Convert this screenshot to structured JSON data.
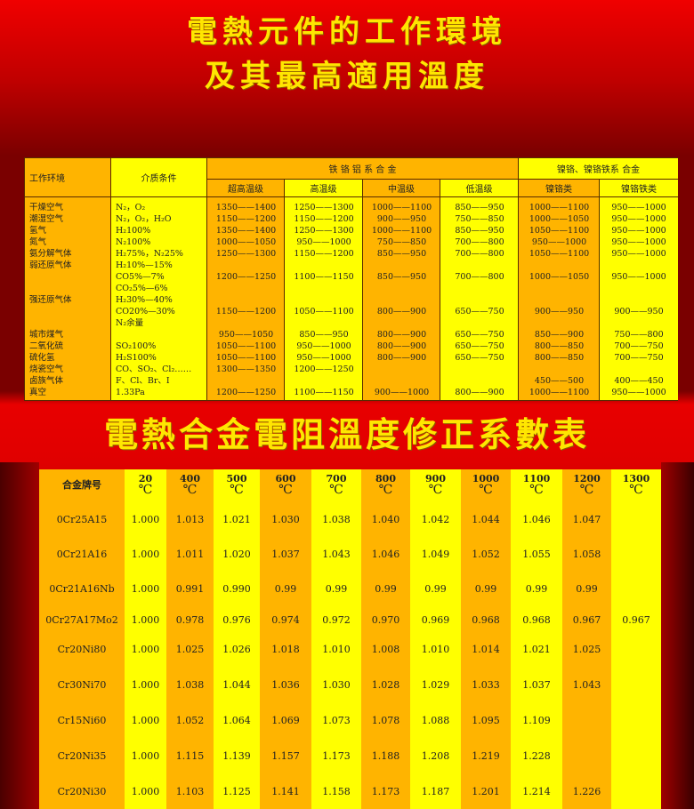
{
  "titles": {
    "line1": "電熱元件的工作環境",
    "line2": "及其最高適用溫度",
    "line3": "電熱合金電阻溫度修正系數表"
  },
  "env_table": {
    "header_env": "工作环境",
    "header_medium": "介质条件",
    "group_fecral": "铁 铬 铝 系 合 金",
    "group_nicr": "镍铬、镍铬铁系 合金",
    "subheaders": [
      "超高温级",
      "高温级",
      "中温级",
      "低温级",
      "镍铬类",
      "镍铬铁类"
    ],
    "lines": [
      [
        "干燥空气",
        "N₂，O₂",
        "1350——1400",
        "1250——1300",
        "1000——1100",
        "850——950",
        "1000——1100",
        "950——1000"
      ],
      [
        "潮湿空气",
        "N₂，O₂，H₂O",
        "1150——1200",
        "1150——1200",
        "900——950",
        "750——850",
        "1000——1050",
        "950——1000"
      ],
      [
        "氢气",
        "H₂100%",
        "1350——1400",
        "1250——1300",
        "1000——1100",
        "850——950",
        "1050——1100",
        "950——1000"
      ],
      [
        "氮气",
        "N₂100%",
        "1000——1050",
        "950——1000",
        "750——850",
        "700——800",
        "950——1000",
        "950——1000"
      ],
      [
        "氨分解气体",
        "H₂75%，N₂25%",
        "1250——1300",
        "1150——1200",
        "850——950",
        "700——800",
        "1050——1100",
        "950——1000"
      ],
      [
        "弱还原气体",
        "H₂10%—15%",
        "",
        "",
        "",
        "",
        "",
        ""
      ],
      [
        "",
        "CO5%—7%",
        "1200——1250",
        "1100——1150",
        "850——950",
        "700——800",
        "1000——1050",
        "950——1000"
      ],
      [
        "",
        "CO₂5%—6%",
        "",
        "",
        "",
        "",
        "",
        ""
      ],
      [
        "强还原气体",
        "H₂30%—40%",
        "",
        "",
        "",
        "",
        "",
        ""
      ],
      [
        "",
        "CO20%—30%",
        "1150——1200",
        "1050——1100",
        "800——900",
        "650——750",
        "900——950",
        "900——950"
      ],
      [
        "",
        "N₂余量",
        "",
        "",
        "",
        "",
        "",
        ""
      ],
      [
        "城市煤气",
        "",
        "950——1050",
        "850——950",
        "800——900",
        "650——750",
        "850——900",
        "750——800"
      ],
      [
        "二氧化硫",
        "SO₂100%",
        "1050——1100",
        "950——1000",
        "800——900",
        "650——750",
        "800——850",
        "700——750"
      ],
      [
        "硫化氢",
        "H₂S100%",
        "1050——1100",
        "950——1000",
        "800——900",
        "650——750",
        "800——850",
        "700——750"
      ],
      [
        "烧瓷空气",
        "CO、SO₂、Cl₂……",
        "1300——1350",
        "1200——1250",
        "",
        "",
        "",
        ""
      ],
      [
        "卤族气体",
        "F、Cl、Br、I",
        "",
        "",
        "",
        "",
        "450——500",
        "400——450"
      ],
      [
        "真空",
        "1.33Pa",
        "1200——1250",
        "1100——1150",
        "900——1000",
        "800——900",
        "1000——1100",
        "950——1000"
      ]
    ]
  },
  "coef_table": {
    "header_alloy": "合金牌号",
    "unit": "℃",
    "temperatures": [
      "20",
      "400",
      "500",
      "600",
      "700",
      "800",
      "900",
      "1000",
      "1100",
      "1200",
      "1300"
    ],
    "rows": [
      {
        "alloy": "0Cr25A15",
        "values": [
          "1.000",
          "1.013",
          "1.021",
          "1.030",
          "1.038",
          "1.040",
          "1.042",
          "1.044",
          "1.046",
          "1.047",
          ""
        ]
      },
      {
        "alloy": "0Cr21A16",
        "values": [
          "1.000",
          "1.011",
          "1.020",
          "1.037",
          "1.043",
          "1.046",
          "1.049",
          "1.052",
          "1.055",
          "1.058",
          ""
        ]
      },
      {
        "alloy": "0Cr21A16Nb",
        "values": [
          "1.000",
          "0.991",
          "0.990",
          "0.99",
          "0.99",
          "0.99",
          "0.99",
          "0.99",
          "0.99",
          "0.99",
          ""
        ]
      },
      {
        "alloy": "0Cr27A17Mo2",
        "values": [
          "1.000",
          "0.978",
          "0.976",
          "0.974",
          "0.972",
          "0.970",
          "0.969",
          "0.968",
          "0.968",
          "0.967",
          "0.967"
        ]
      },
      {
        "alloy": "Cr20Ni80",
        "values": [
          "1.000",
          "1.025",
          "1.026",
          "1.018",
          "1.010",
          "1.008",
          "1.010",
          "1.014",
          "1.021",
          "1.025",
          ""
        ]
      },
      {
        "alloy": "Cr30Ni70",
        "values": [
          "1.000",
          "1.038",
          "1.044",
          "1.036",
          "1.030",
          "1.028",
          "1.029",
          "1.033",
          "1.037",
          "1.043",
          ""
        ]
      },
      {
        "alloy": "Cr15Ni60",
        "values": [
          "1.000",
          "1.052",
          "1.064",
          "1.069",
          "1.073",
          "1.078",
          "1.088",
          "1.095",
          "1.109",
          "",
          ""
        ]
      },
      {
        "alloy": "Cr20Ni35",
        "values": [
          "1.000",
          "1.115",
          "1.139",
          "1.157",
          "1.173",
          "1.188",
          "1.208",
          "1.219",
          "1.228",
          "",
          ""
        ]
      },
      {
        "alloy": "Cr20Ni30",
        "values": [
          "1.000",
          "1.103",
          "1.125",
          "1.141",
          "1.158",
          "1.173",
          "1.187",
          "1.201",
          "1.214",
          "1.226",
          ""
        ]
      }
    ]
  },
  "colors": {
    "orange": "#ffb400",
    "yellow": "#ffff00",
    "title": "#ffe600",
    "background": "#d00000"
  }
}
